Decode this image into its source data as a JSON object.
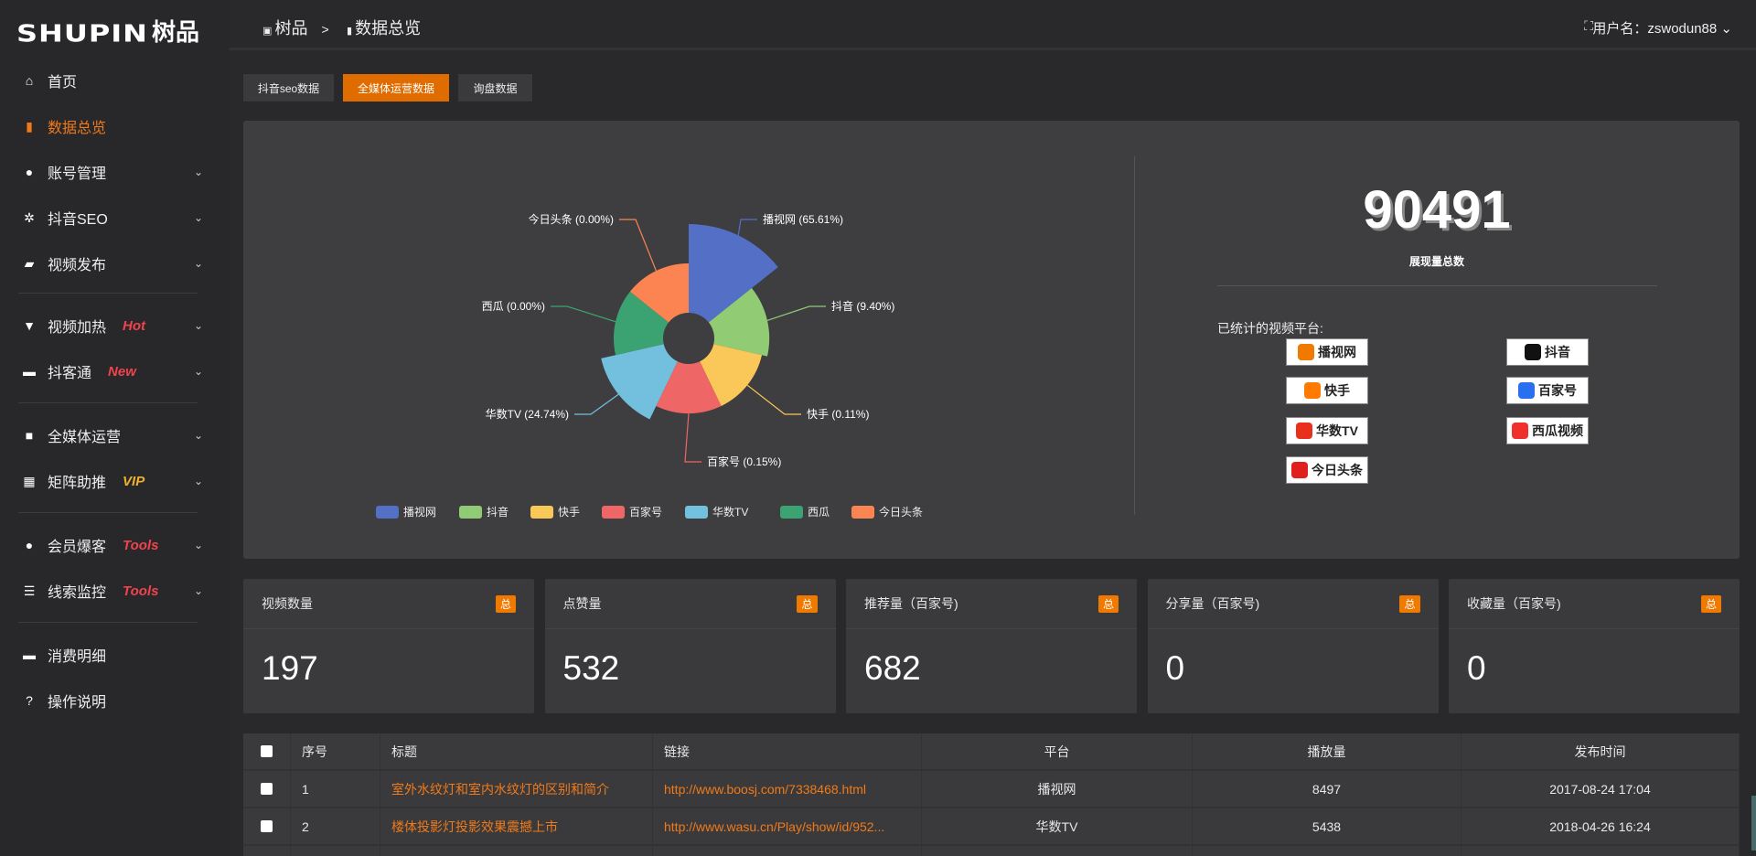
{
  "logo": {
    "en": "SHUPIN",
    "cn": "树品"
  },
  "sidebar": {
    "items": [
      {
        "label": "首页",
        "icon": "home-icon",
        "glyph": "⌂"
      },
      {
        "label": "数据总览",
        "icon": "bar-chart-icon",
        "glyph": "▮",
        "active": true
      },
      {
        "label": "账号管理",
        "icon": "user-icon",
        "glyph": "●",
        "chev": true
      },
      {
        "label": "抖音SEO",
        "icon": "gear-icon",
        "glyph": "✲",
        "chev": true
      },
      {
        "label": "视频发布",
        "icon": "camera-icon",
        "glyph": "▰",
        "chev": true
      },
      {
        "label": "视频加热",
        "icon": "monitor-icon",
        "glyph": "▼",
        "chev": true,
        "tag": "Hot",
        "tag_color": "#f0434e"
      },
      {
        "label": "抖客通",
        "icon": "comment-icon",
        "glyph": "▬",
        "chev": true,
        "tag": "New",
        "tag_color": "#f0434e"
      },
      {
        "label": "全媒体运营",
        "icon": "desktop-icon",
        "glyph": "■",
        "chev": true
      },
      {
        "label": "矩阵助推",
        "icon": "grid-icon",
        "glyph": "▦",
        "chev": true,
        "tag": "VIP",
        "tag_color": "#f0b030"
      },
      {
        "label": "会员爆客",
        "icon": "user-icon",
        "glyph": "●",
        "chev": true,
        "tag": "Tools",
        "tag_color": "#f0434e"
      },
      {
        "label": "线索监控",
        "icon": "sliders-icon",
        "glyph": "☰",
        "chev": true,
        "tag": "Tools",
        "tag_color": "#f0434e"
      },
      {
        "label": "消费明细",
        "icon": "wallet-icon",
        "glyph": "▬"
      },
      {
        "label": "操作说明",
        "icon": "question-icon",
        "glyph": "?"
      }
    ]
  },
  "header": {
    "crumb1": "树品",
    "crumb_sep": ">",
    "crumb2": "数据总览",
    "user": "用户名：zswodun88",
    "fullscreen_icon": "⛶"
  },
  "tabs": [
    {
      "label": "抖音seo数据"
    },
    {
      "label": "全媒体运营数据",
      "active": true
    },
    {
      "label": "询盘数据"
    }
  ],
  "summary": {
    "total": "90491",
    "total_label": "展现量总数",
    "platforms_label": "已统计的视频平台:",
    "platform_logos": [
      {
        "name": "播视网",
        "color": "#f07a00"
      },
      {
        "name": "抖音",
        "color": "#111"
      },
      {
        "name": "快手",
        "color": "#ff7a00"
      },
      {
        "name": "百家号",
        "color": "#2a6ff0"
      },
      {
        "name": "华数TV",
        "color": "#e8301c"
      },
      {
        "name": "西瓜视频",
        "color": "#f0302c"
      },
      {
        "name": "今日头条",
        "color": "#e0201c"
      }
    ]
  },
  "chart_data": {
    "type": "pie",
    "rose": true,
    "categories": [
      "播视网",
      "抖音",
      "快手",
      "百家号",
      "华数TV",
      "西瓜",
      "今日头条"
    ],
    "values": [
      65.61,
      9.4,
      0.11,
      0.15,
      24.74,
      0.0,
      0.0
    ],
    "labels": [
      "播视网 (65.61%)",
      "抖音 (9.40%)",
      "快手 (0.11%)",
      "百家号 (0.15%)",
      "华数TV (24.74%)",
      "西瓜 (0.00%)",
      "今日头条 (0.00%)"
    ],
    "colors": [
      "#5470c6",
      "#91cc75",
      "#fac858",
      "#ee6666",
      "#73c0de",
      "#3ba272",
      "#fc8452"
    ],
    "legend_position": "bottom"
  },
  "cards": [
    {
      "label": "视频数量",
      "badge": "总",
      "value": "197"
    },
    {
      "label": "点赞量",
      "badge": "总",
      "value": "532"
    },
    {
      "label": "推荐量（百家号)",
      "badge": "总",
      "value": "682"
    },
    {
      "label": "分享量（百家号)",
      "badge": "总",
      "value": "0"
    },
    {
      "label": "收藏量（百家号)",
      "badge": "总",
      "value": "0"
    }
  ],
  "table": {
    "headers": [
      "序号",
      "标题",
      "链接",
      "平台",
      "播放量",
      "发布时间"
    ],
    "rows": [
      [
        "1",
        "室外水纹灯和室内水纹灯的区别和简介",
        "http://www.boosj.com/7338468.html",
        "播视网",
        "8497",
        "2017-08-24 17:04"
      ],
      [
        "2",
        "楼体投影灯投影效果震撼上市",
        "http://www.wasu.cn/Play/show/id/952...",
        "华数TV",
        "5438",
        "2018-04-26 16:24"
      ],
      [
        "",
        "",
        "",
        "",
        "",
        ""
      ]
    ]
  }
}
